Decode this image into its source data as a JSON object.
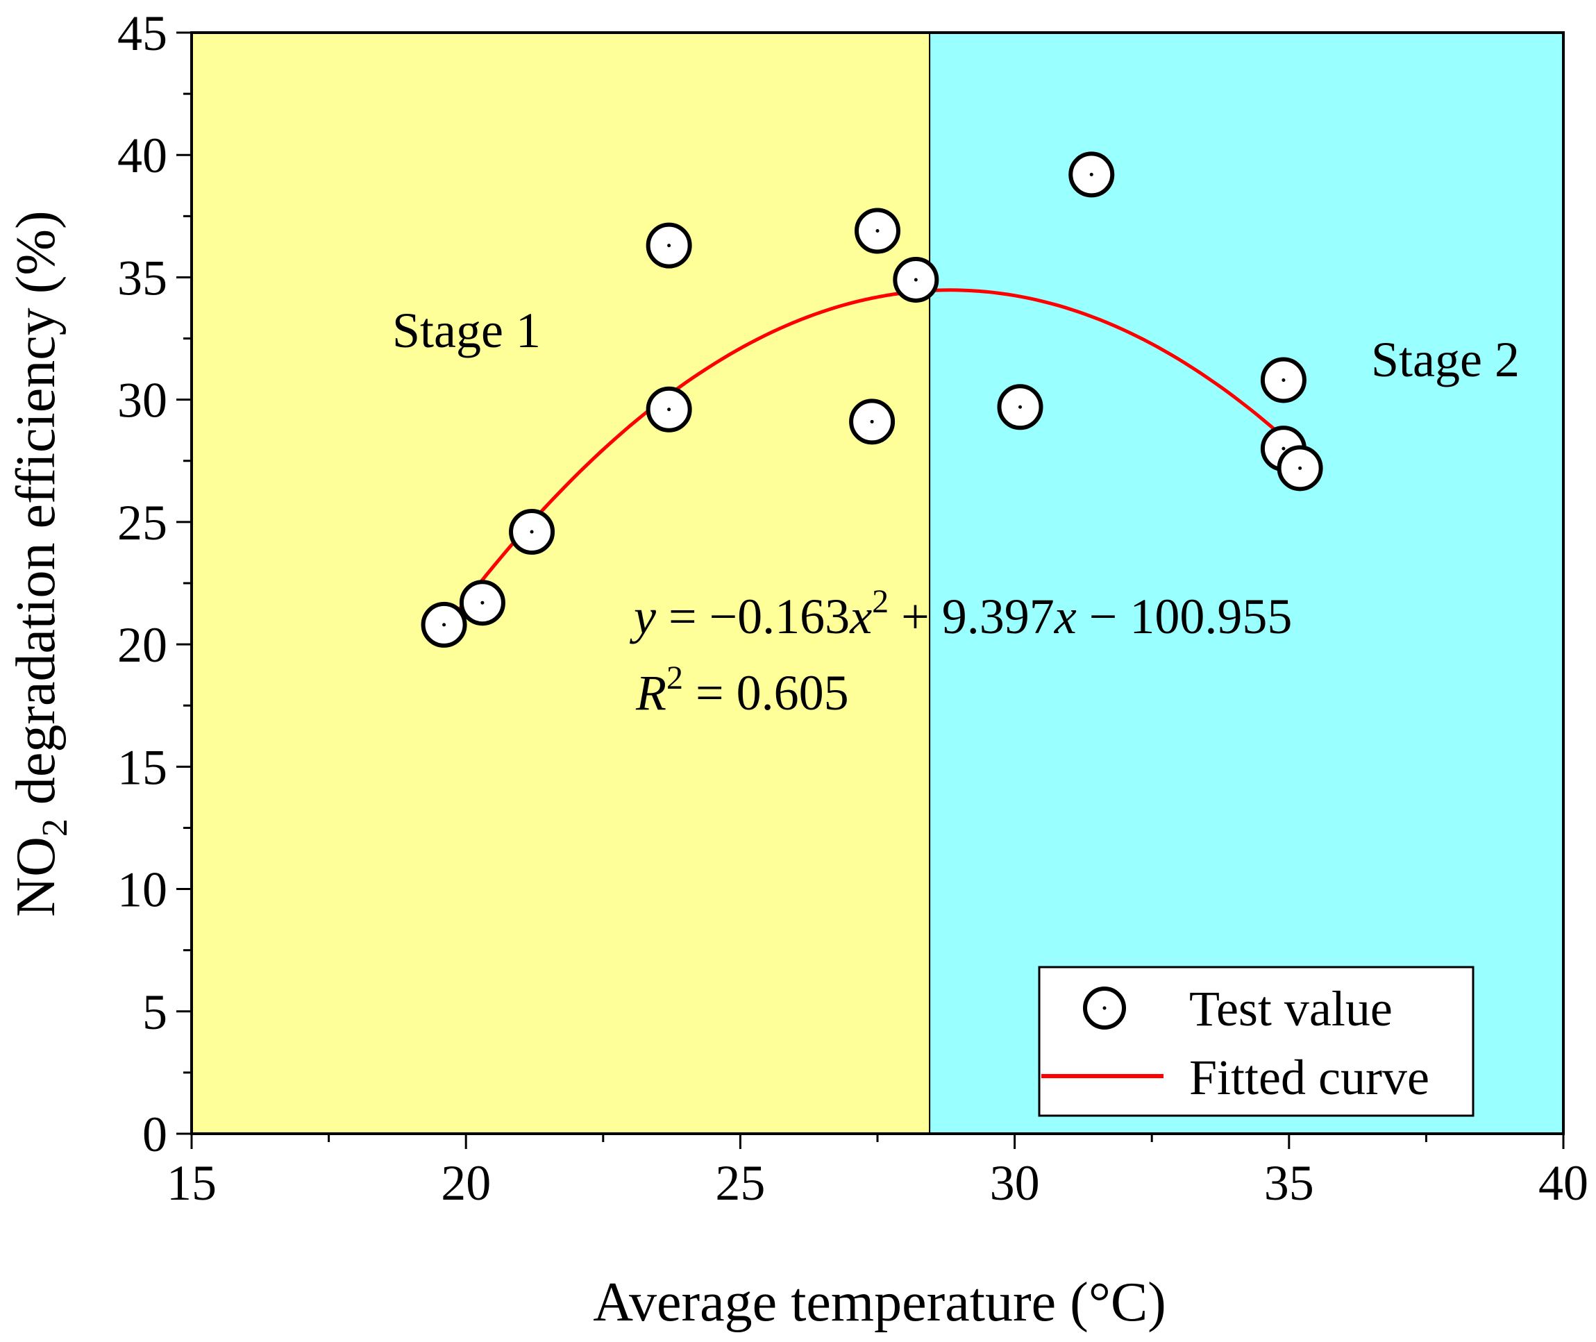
{
  "chart_data": {
    "type": "scatter",
    "title": "",
    "xlabel": "Average temperature (°C)",
    "ylabel": {
      "prefix": "NO",
      "subscript": "2",
      "suffix": " degradation efficiency (%)"
    },
    "xlim": [
      15,
      40
    ],
    "ylim": [
      0,
      45
    ],
    "xticks": [
      "15",
      "20",
      "25",
      "30",
      "35",
      "40"
    ],
    "yticks": [
      "0",
      "5",
      "10",
      "15",
      "20",
      "25",
      "30",
      "35",
      "40",
      "45"
    ],
    "grid": false,
    "regions": [
      {
        "name": "Stage 1",
        "x_range": [
          15,
          28.45
        ],
        "color": "#ffff99"
      },
      {
        "name": "Stage 2",
        "x_range": [
          28.45,
          40
        ],
        "color": "#99ffff"
      }
    ],
    "series": [
      {
        "name": "Test value",
        "kind": "scatter",
        "marker": "circled-dot",
        "x": [
          19.6,
          20.3,
          21.2,
          23.7,
          23.7,
          27.4,
          27.5,
          28.2,
          30.1,
          31.4,
          34.9,
          34.9,
          35.2
        ],
        "y": [
          20.8,
          21.7,
          24.6,
          36.3,
          29.6,
          29.1,
          36.9,
          34.9,
          29.7,
          39.2,
          30.8,
          28.0,
          27.2
        ]
      },
      {
        "name": "Fitted curve",
        "kind": "line",
        "color": "#ff0000",
        "equation": {
          "a": -0.163,
          "b": 9.397,
          "c": -100.955
        },
        "x_range": [
          19.6,
          35.2
        ]
      }
    ],
    "annotations": {
      "stage1": "Stage 1",
      "stage2": "Stage 2",
      "equation": {
        "y_var": "y",
        "eq_part1": " = −0.163",
        "x_var1": "x",
        "exp1": "2",
        "eq_part2": " + 9.397",
        "x_var2": "x",
        "eq_part3": " − 100.955"
      },
      "r2": {
        "var": "R",
        "exp": "2",
        "value": " = 0.605"
      }
    },
    "legend": {
      "position": "bottom-right",
      "items": [
        "Test value",
        "Fitted curve"
      ]
    }
  }
}
